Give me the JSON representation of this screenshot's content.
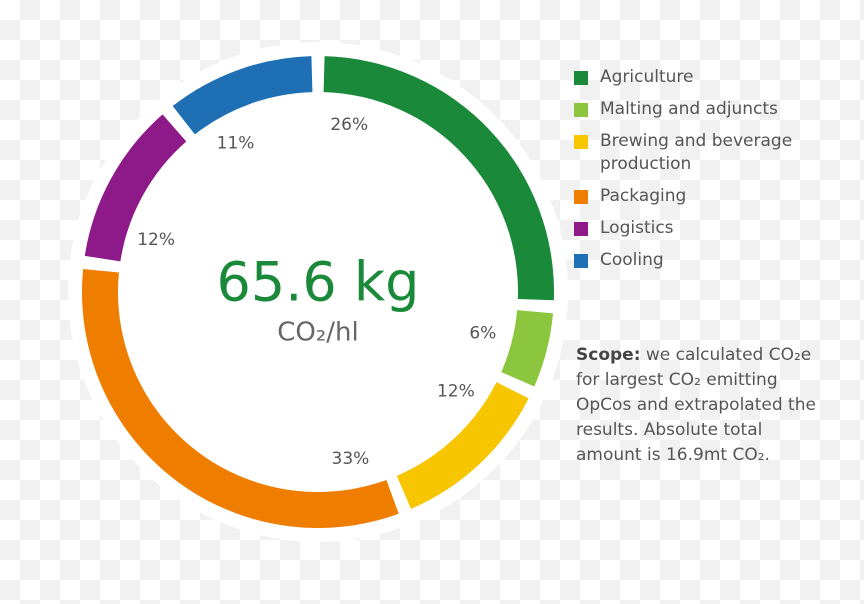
{
  "chart_data": {
    "type": "donut",
    "categories": [
      "Agriculture",
      "Malting and adjuncts",
      "Brewing and beverage production",
      "Packaging",
      "Logistics",
      "Cooling"
    ],
    "values": [
      26,
      6,
      12,
      33,
      12,
      11
    ],
    "value_labels": [
      "26%",
      "6%",
      "12%",
      "33%",
      "12%",
      "11%"
    ],
    "colors": [
      "#1a8a3a",
      "#8cc63f",
      "#f7c600",
      "#ee7d00",
      "#8e1a8a",
      "#1f6fb5"
    ],
    "center_value": "65.6 kg",
    "center_unit": "CO₂/hl",
    "legend": "right",
    "note_label": "Scope:",
    "note": "we calculated CO₂e for largest CO₂ emitting OpCos and extrapolated the results. Absolute total amount is 16.9mt CO₂."
  }
}
